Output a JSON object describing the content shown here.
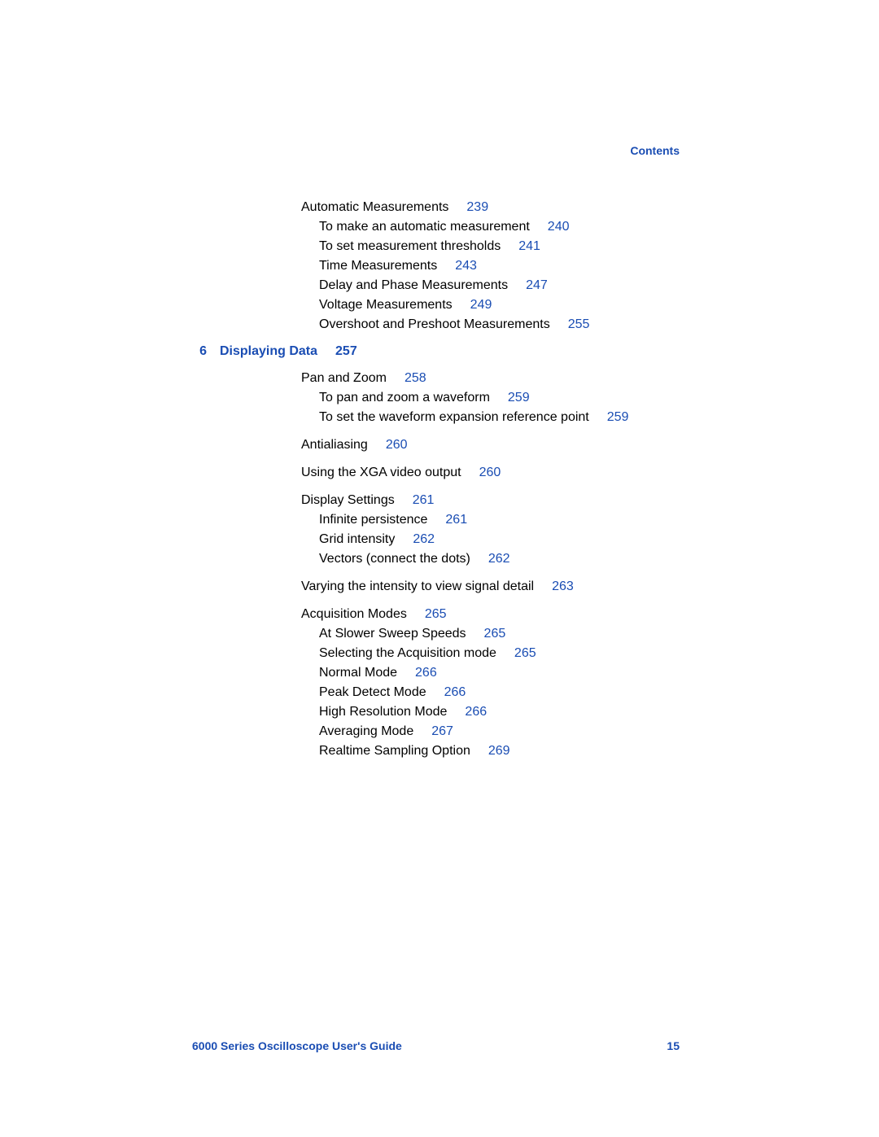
{
  "header": {
    "label": "Contents"
  },
  "footer": {
    "title": "6000 Series Oscilloscope User's Guide",
    "page": "15"
  },
  "link_color": "#1a4db3",
  "text_color": "#000000",
  "background_color": "#ffffff",
  "blocks": [
    {
      "type": "section",
      "entries": [
        {
          "level": 1,
          "title": "Automatic Measurements",
          "page": "239"
        },
        {
          "level": 2,
          "title": "To make an automatic measurement",
          "page": "240"
        },
        {
          "level": 2,
          "title": "To set measurement thresholds",
          "page": "241"
        },
        {
          "level": 2,
          "title": "Time Measurements",
          "page": "243"
        },
        {
          "level": 2,
          "title": "Delay and Phase Measurements",
          "page": "247"
        },
        {
          "level": 2,
          "title": "Voltage Measurements",
          "page": "249"
        },
        {
          "level": 2,
          "title": "Overshoot and Preshoot Measurements",
          "page": "255"
        }
      ]
    },
    {
      "type": "chapter",
      "num": "6",
      "title": "Displaying Data",
      "page": "257"
    },
    {
      "type": "section",
      "entries": [
        {
          "level": 1,
          "title": "Pan and Zoom",
          "page": "258"
        },
        {
          "level": 2,
          "title": "To pan and zoom a waveform",
          "page": "259"
        },
        {
          "level": 2,
          "title": "To set the waveform expansion reference point",
          "page": "259"
        }
      ]
    },
    {
      "type": "section",
      "entries": [
        {
          "level": 1,
          "title": "Antialiasing",
          "page": "260"
        }
      ]
    },
    {
      "type": "section",
      "entries": [
        {
          "level": 1,
          "title": "Using the XGA video output",
          "page": "260"
        }
      ]
    },
    {
      "type": "section",
      "entries": [
        {
          "level": 1,
          "title": "Display Settings",
          "page": "261"
        },
        {
          "level": 2,
          "title": "Infinite persistence",
          "page": "261"
        },
        {
          "level": 2,
          "title": "Grid intensity",
          "page": "262"
        },
        {
          "level": 2,
          "title": "Vectors (connect the dots)",
          "page": "262"
        }
      ]
    },
    {
      "type": "section",
      "entries": [
        {
          "level": 1,
          "title": "Varying the intensity to view signal detail",
          "page": "263"
        }
      ]
    },
    {
      "type": "section",
      "entries": [
        {
          "level": 1,
          "title": "Acquisition Modes",
          "page": "265"
        },
        {
          "level": 2,
          "title": "At Slower Sweep Speeds",
          "page": "265"
        },
        {
          "level": 2,
          "title": "Selecting the Acquisition mode",
          "page": "265"
        },
        {
          "level": 2,
          "title": "Normal Mode",
          "page": "266"
        },
        {
          "level": 2,
          "title": "Peak Detect Mode",
          "page": "266"
        },
        {
          "level": 2,
          "title": "High Resolution Mode",
          "page": "266"
        },
        {
          "level": 2,
          "title": "Averaging Mode",
          "page": "267"
        },
        {
          "level": 2,
          "title": "Realtime Sampling Option",
          "page": "269"
        }
      ]
    }
  ]
}
